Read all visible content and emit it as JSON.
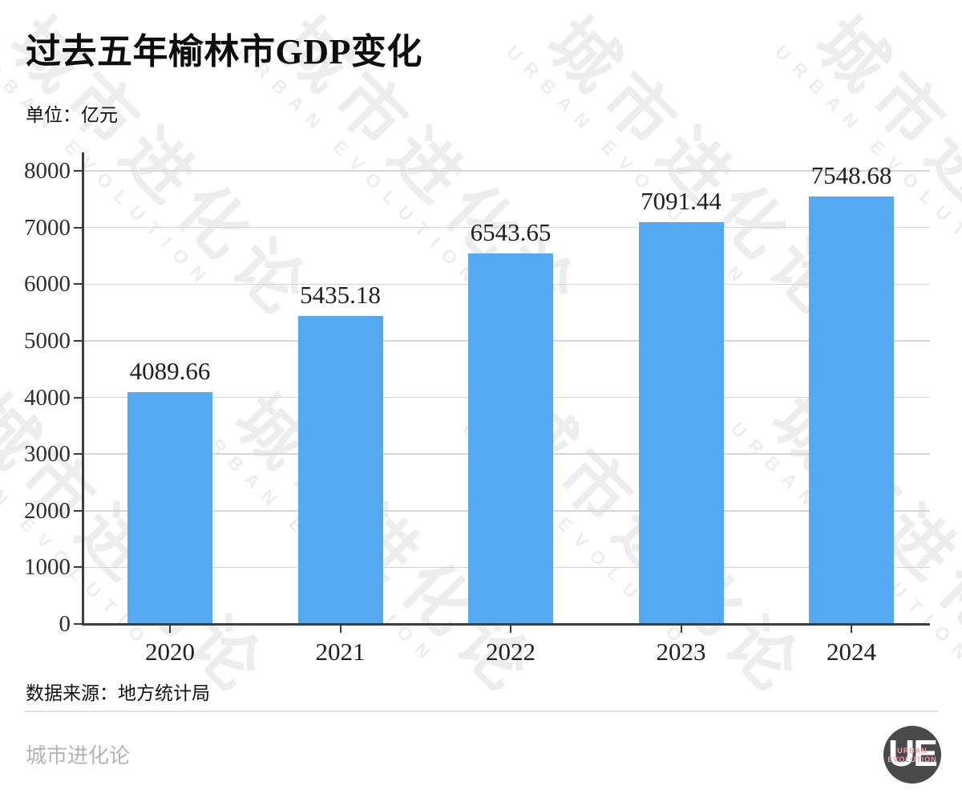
{
  "header": {
    "title": "过去五年榆林市GDP变化",
    "subtitle": "单位：亿元"
  },
  "source_note": "数据来源：地方统计局",
  "footer": {
    "brand": "城市进化论",
    "logo_letters": "UE",
    "logo_line1": "URBAN",
    "logo_line2": "EVOLUTION"
  },
  "watermark": {
    "cjk": "城市进化论",
    "latin": "URBAN EVOLUTION"
  },
  "colors": {
    "bar": "#55a9f0",
    "axis": "#3d3d3d",
    "grid": "#d6d6d6",
    "text": "#1f1f1f",
    "footer_text": "#b3b3b3",
    "logo_bg": "#4a4a4a",
    "logo_accent": "#f09cb1"
  },
  "chart_data": {
    "type": "bar",
    "categories": [
      "2020",
      "2021",
      "2022",
      "2023",
      "2024"
    ],
    "values": [
      4089.66,
      5435.18,
      6543.65,
      7091.44,
      7548.68
    ],
    "series_name": "GDP",
    "title": "过去五年榆林市GDP变化",
    "unit": "亿元",
    "xlabel": "",
    "ylabel": "",
    "ylim": [
      0,
      8000
    ],
    "yticks": [
      0,
      1000,
      2000,
      3000,
      4000,
      5000,
      6000,
      7000,
      8000
    ],
    "grid": true,
    "legend": false,
    "data_labels": true,
    "bar_color": "#55a9f0"
  }
}
